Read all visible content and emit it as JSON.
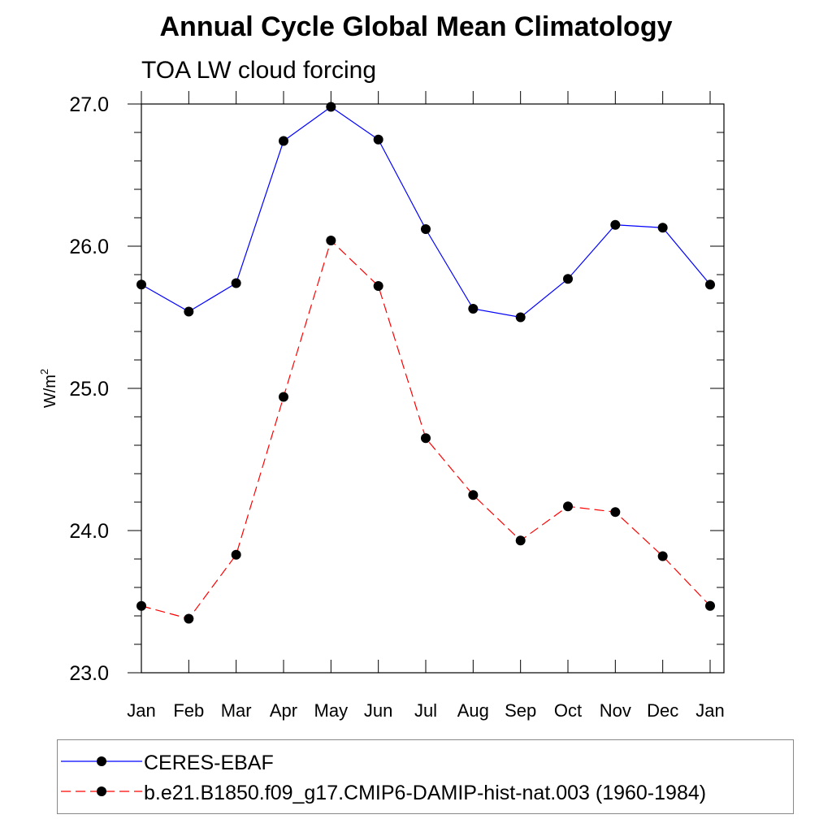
{
  "title": "Annual Cycle Global Mean Climatology",
  "subtitle": "TOA LW cloud forcing",
  "chart_data": {
    "type": "line",
    "categories": [
      "Jan",
      "Feb",
      "Mar",
      "Apr",
      "May",
      "Jun",
      "Jul",
      "Aug",
      "Sep",
      "Oct",
      "Nov",
      "Dec",
      "Jan"
    ],
    "ylabel": "W/m",
    "ylabel_superscript": "2",
    "ylim": [
      23.0,
      27.0
    ],
    "yticks": [
      "23.0",
      "24.0",
      "25.0",
      "26.0",
      "27.0"
    ],
    "series": [
      {
        "name": "CERES-EBAF",
        "color": "#0000ff",
        "dash": "solid",
        "values": [
          25.73,
          25.54,
          25.74,
          26.74,
          26.98,
          26.75,
          26.12,
          25.56,
          25.5,
          25.77,
          26.15,
          26.13,
          25.73
        ]
      },
      {
        "name": "b.e21.B1850.f09_g17.CMIP6-DAMIP-hist-nat.003 (1960-1984)",
        "color": "#ff0000",
        "dash": "dashed",
        "values": [
          23.47,
          23.38,
          23.83,
          24.94,
          26.04,
          25.72,
          24.65,
          24.25,
          23.93,
          24.17,
          24.13,
          23.82,
          23.47
        ]
      }
    ]
  }
}
